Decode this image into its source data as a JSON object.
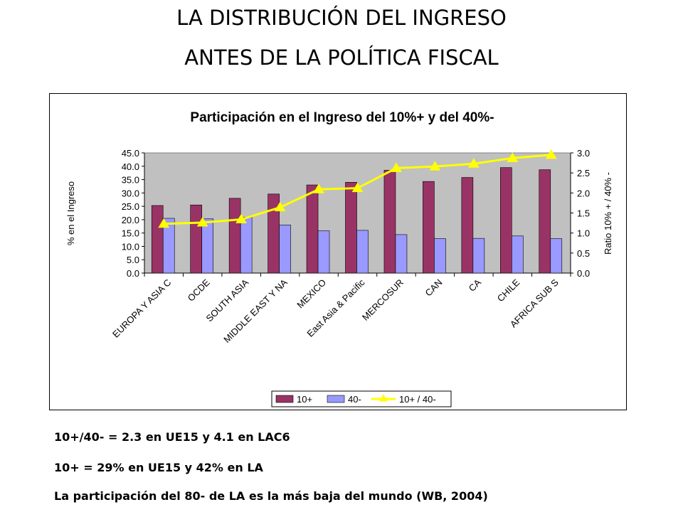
{
  "slide": {
    "title_line1": "LA DISTRIBUCIÓN DEL INGRESO",
    "title_line2": "ANTES DE LA POLÍTICA FISCAL",
    "notes": [
      "10+/40- = 2.3 en UE15 y 4.1 en LAC6",
      "10+ = 29% en UE15 y 42% en LA",
      "La participación del 80- de LA es la más baja del mundo (WB, 2004)"
    ]
  },
  "chart_data": {
    "type": "bar",
    "title": "Participación en el Ingreso del 10%+ y del 40%-",
    "ylabel": "% en el Ingreso",
    "y2label": "Ratio 10% + / 40% -",
    "ylim": [
      0,
      45
    ],
    "y2lim": [
      0,
      3
    ],
    "yticks": [
      "0.0",
      "5.0",
      "10.0",
      "15.0",
      "20.0",
      "25.0",
      "30.0",
      "35.0",
      "40.0",
      "45.0"
    ],
    "y2ticks": [
      "0.0",
      "0.5",
      "1.0",
      "1.5",
      "2.0",
      "2.5",
      "3.0"
    ],
    "categories": [
      "EUROPA Y ASIA C",
      "OCDE",
      "SOUTH ASIA",
      "MIDDLE EAST Y NA",
      "MEXICO",
      "East Asia & Pacific",
      "MERCOSUR",
      "CAN",
      "CA",
      "CHILE",
      "AFRICA SUB S"
    ],
    "series": [
      {
        "name": "10+",
        "color": "#993366",
        "axis": "left",
        "values": [
          25.3,
          25.5,
          28.0,
          29.6,
          33.0,
          34.0,
          38.5,
          34.3,
          35.8,
          39.5,
          38.7
        ]
      },
      {
        "name": "40-",
        "color": "#9999ff",
        "axis": "left",
        "values": [
          20.5,
          20.3,
          20.9,
          18.0,
          15.8,
          16.0,
          14.4,
          12.9,
          13.0,
          13.9,
          12.9
        ]
      },
      {
        "name": "10+ / 40-",
        "color": "#ffff00",
        "axis": "right",
        "marker": "triangle",
        "values": [
          1.23,
          1.26,
          1.34,
          1.64,
          2.09,
          2.12,
          2.62,
          2.66,
          2.73,
          2.87,
          2.95
        ]
      }
    ],
    "plot_background": "#c0c0c0",
    "legend": "bottom"
  }
}
